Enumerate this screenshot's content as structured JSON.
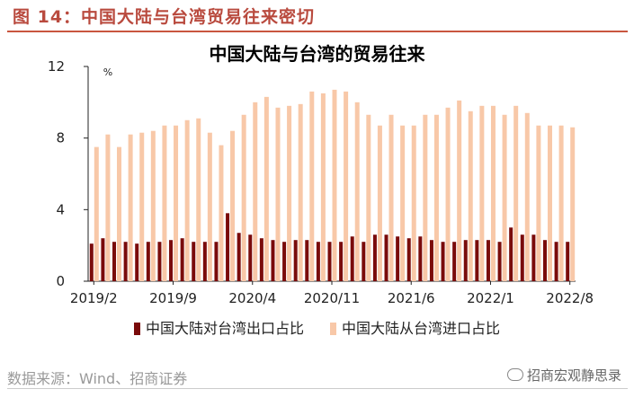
{
  "figure_label": "图 14：中国大陆与台湾贸易往来密切",
  "source": "数据来源：Wind、招商证券",
  "watermark": "招商宏观静思录",
  "colors": {
    "export_share": "#7a0b0b",
    "import_share": "#f8c8a8",
    "title": "#b94a3e"
  },
  "chart_data": {
    "type": "bar",
    "title": "中国大陆与台湾的贸易往来",
    "unit": "%",
    "ylim": [
      0,
      12
    ],
    "yticks": [
      0,
      4,
      8,
      12
    ],
    "xtick_labels": [
      "2019/2",
      "2019/9",
      "2020/4",
      "2020/11",
      "2021/6",
      "2022/1",
      "2022/8"
    ],
    "categories": [
      "2019/2",
      "2019/3",
      "2019/4",
      "2019/5",
      "2019/6",
      "2019/7",
      "2019/8",
      "2019/9",
      "2019/10",
      "2019/11",
      "2019/12",
      "2020/1",
      "2020/2",
      "2020/3",
      "2020/4",
      "2020/5",
      "2020/6",
      "2020/7",
      "2020/8",
      "2020/9",
      "2020/10",
      "2020/11",
      "2020/12",
      "2021/1",
      "2021/2",
      "2021/3",
      "2021/4",
      "2021/5",
      "2021/6",
      "2021/7",
      "2021/8",
      "2021/9",
      "2021/10",
      "2021/11",
      "2021/12",
      "2022/1",
      "2022/2",
      "2022/3",
      "2022/4",
      "2022/5",
      "2022/6",
      "2022/7",
      "2022/8"
    ],
    "series": [
      {
        "name": "中国大陆对台湾出口占比",
        "values": [
          2.1,
          2.4,
          2.2,
          2.2,
          2.1,
          2.2,
          2.2,
          2.3,
          2.4,
          2.2,
          2.2,
          2.2,
          3.8,
          2.7,
          2.6,
          2.4,
          2.3,
          2.2,
          2.3,
          2.3,
          2.2,
          2.2,
          2.2,
          2.5,
          2.2,
          2.6,
          2.6,
          2.5,
          2.4,
          2.5,
          2.3,
          2.2,
          2.2,
          2.3,
          2.3,
          2.3,
          2.2,
          3.0,
          2.6,
          2.6,
          2.3,
          2.2,
          2.2
        ]
      },
      {
        "name": "中国大陆从台湾进口占比",
        "values": [
          7.5,
          8.2,
          7.5,
          8.2,
          8.3,
          8.4,
          8.7,
          8.7,
          9.0,
          9.1,
          8.3,
          7.6,
          8.4,
          9.3,
          10.0,
          10.3,
          9.7,
          9.8,
          9.9,
          10.6,
          10.5,
          10.7,
          10.6,
          10.0,
          9.3,
          8.7,
          9.3,
          8.7,
          8.7,
          9.3,
          9.3,
          9.7,
          10.1,
          9.5,
          9.8,
          9.8,
          9.3,
          9.8,
          9.4,
          8.7,
          8.7,
          8.7,
          8.6
        ]
      }
    ],
    "legend_position": "bottom"
  }
}
